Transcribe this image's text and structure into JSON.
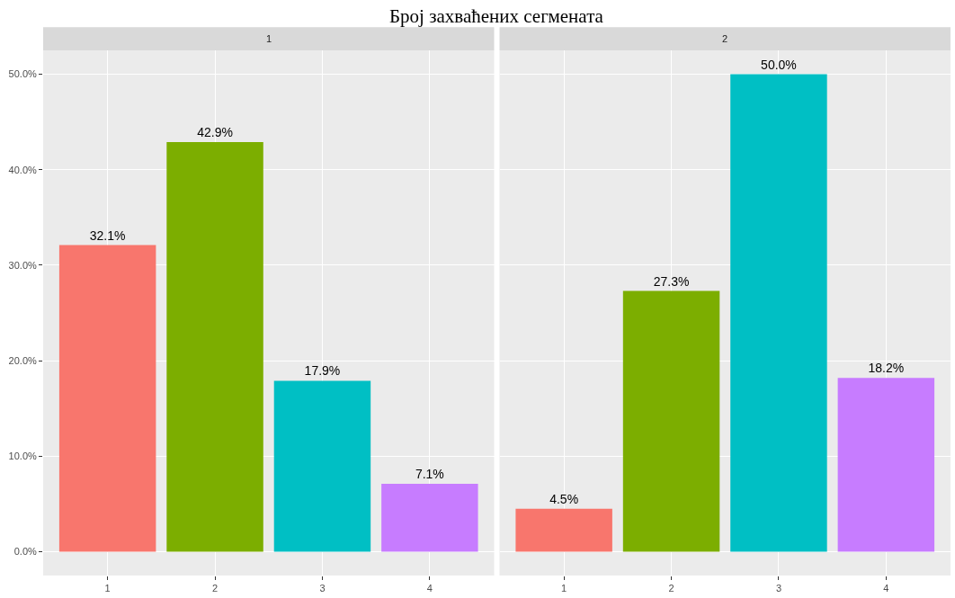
{
  "chart_data": [
    {
      "type": "bar",
      "title": "1",
      "annotations": [
        "Број захваћених сегмената"
      ],
      "categories": [
        "1",
        "2",
        "3",
        "4"
      ],
      "values": [
        32.1,
        42.9,
        17.9,
        7.1
      ],
      "value_labels": [
        "32.1%",
        "42.9%",
        "17.9%",
        "7.1%"
      ],
      "colors": [
        "#f8766d",
        "#7cae00",
        "#00bfc4",
        "#c77cff"
      ],
      "ylim": [
        -2.5,
        52.5
      ],
      "yticks": [
        {
          "value": 0,
          "label": "0.0%"
        },
        {
          "value": 10,
          "label": "10.0%"
        },
        {
          "value": 20,
          "label": "20.0%"
        },
        {
          "value": 30,
          "label": "30.0%"
        },
        {
          "value": 40,
          "label": "40.0%"
        },
        {
          "value": 50,
          "label": "50.0%"
        }
      ],
      "grid": true
    },
    {
      "type": "bar",
      "title": "2",
      "categories": [
        "1",
        "2",
        "3",
        "4"
      ],
      "values": [
        4.5,
        27.3,
        50.0,
        18.2
      ],
      "value_labels": [
        "4.5%",
        "27.3%",
        "50.0%",
        "18.2%"
      ],
      "colors": [
        "#f8766d",
        "#7cae00",
        "#00bfc4",
        "#c77cff"
      ],
      "ylim": [
        -2.5,
        52.5
      ],
      "yticks": [
        {
          "value": 0,
          "label": null
        },
        {
          "value": 10,
          "label": null
        },
        {
          "value": 20,
          "label": null
        },
        {
          "value": 30,
          "label": null
        },
        {
          "value": 40,
          "label": null
        },
        {
          "value": 50,
          "label": null
        }
      ],
      "grid": true,
      "tick_labels": "x"
    }
  ]
}
